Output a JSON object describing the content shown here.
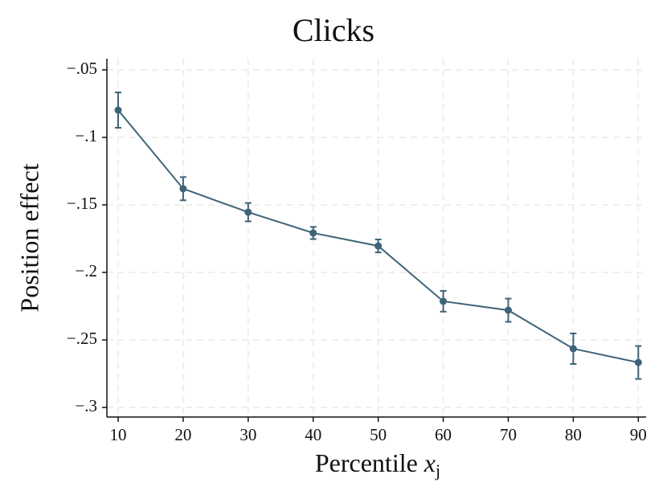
{
  "chart_data": {
    "type": "line",
    "title": "Clicks",
    "xlabel": {
      "text": "Percentile",
      "var": "x",
      "sub": "j"
    },
    "ylabel": "Position effect",
    "x": [
      10,
      20,
      30,
      40,
      50,
      60,
      70,
      80,
      90
    ],
    "series": [
      {
        "color": "#3e6378",
        "values": [
          -0.0798,
          -0.138,
          -0.1554,
          -0.1708,
          -0.1804,
          -0.2214,
          -0.228,
          -0.2565,
          -0.2667
        ],
        "errors": [
          0.0131,
          0.0086,
          0.0068,
          0.0045,
          0.0048,
          0.0077,
          0.0086,
          0.0113,
          0.0122
        ]
      }
    ],
    "xlim": [
      8.27,
      91.2
    ],
    "ylim": [
      -0.3071,
      -0.0417
    ],
    "xticks": [
      10,
      20,
      30,
      40,
      50,
      60,
      70,
      80,
      90
    ],
    "yticks": [
      {
        "value": -0.05,
        "label": "−.05"
      },
      {
        "value": -0.1,
        "label": "−.1"
      },
      {
        "value": -0.15,
        "label": "−.15"
      },
      {
        "value": -0.2,
        "label": "−.2"
      },
      {
        "value": -0.25,
        "label": "−.25"
      },
      {
        "value": -0.3,
        "label": "−.3"
      }
    ],
    "grid": true
  }
}
